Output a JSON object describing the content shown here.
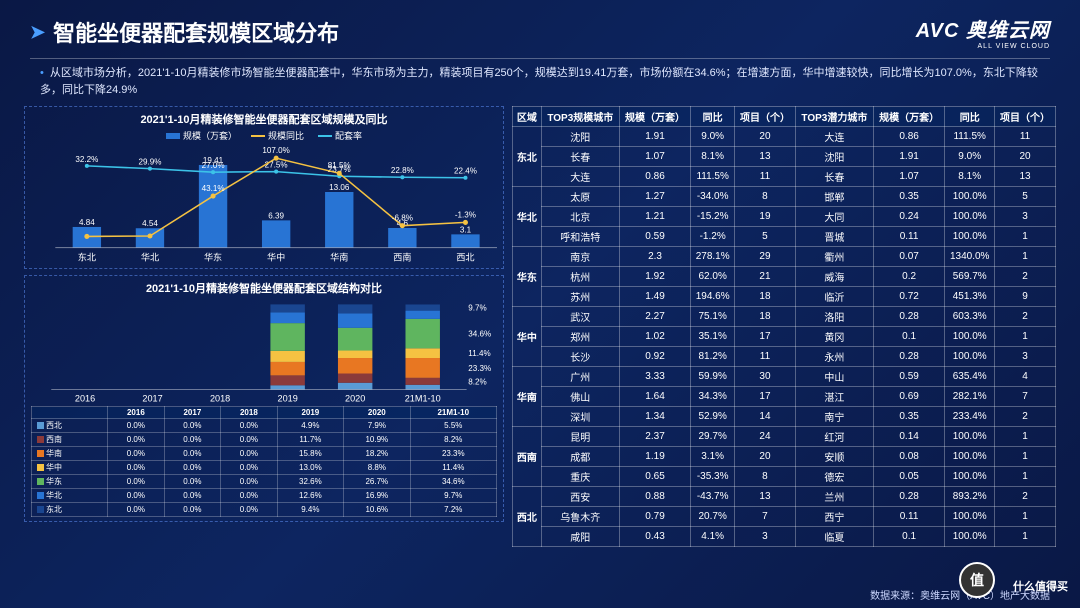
{
  "header": {
    "title": "智能坐便器配套规模区域分布",
    "logo_main": "AVC 奥维云网",
    "logo_sub": "ALL VIEW CLOUD"
  },
  "desc": "从区域市场分析，2021'1-10月精装修市场智能坐便器配套中，华东市场为主力，精装项目有250个，规模达到19.41万套，市场份额在34.6%；在增速方面，华中增速较快，同比增长为107.0%，东北下降较多，同比下降24.9%",
  "chart1": {
    "title": "2021'1-10月精装修智能坐便器配套区域规模及同比",
    "legend": [
      "规模（万套）",
      "规模同比",
      "配套率"
    ],
    "colors": {
      "bar": "#2874d4",
      "line_yoy": "#f5c242",
      "line_rate": "#3cc3e8"
    },
    "categories": [
      "东北",
      "华北",
      "华东",
      "华中",
      "华南",
      "西南",
      "西北"
    ],
    "bars": [
      4.84,
      4.54,
      19.41,
      6.39,
      13.06,
      4.6,
      3.1
    ],
    "yoy": [
      -24.9,
      -24.2,
      43.1,
      107.0,
      81.5,
      -6.8,
      -1.3
    ],
    "rate": [
      32.2,
      29.9,
      27.0,
      27.5,
      23.7,
      22.8,
      22.4
    ],
    "bar_labels": [
      "4.84-24.9%",
      "4.54-24.2%",
      "19.41",
      "6.39",
      "13.06",
      "4.60",
      "3.10"
    ],
    "yoy_labels": [
      "",
      "",
      "43.1%",
      "107.0%",
      "81.5%",
      "-6.8%",
      "-1.3%"
    ],
    "rate_labels": [
      "32.2%",
      "29.9%",
      "27.0%",
      "27.5%",
      "23.7%",
      "22.8%",
      "22.4%"
    ]
  },
  "chart2": {
    "title": "2021'1-10月精装修智能坐便器配套区域结构对比",
    "years": [
      "2016",
      "2017",
      "2018",
      "2019",
      "2020",
      "21M1-10"
    ],
    "regions": [
      "西北",
      "西南",
      "华南",
      "华中",
      "华东",
      "华北",
      "东北"
    ],
    "colors": [
      "#5a9bd5",
      "#8b3a3a",
      "#e87722",
      "#f5c242",
      "#5fb55f",
      "#2874d4",
      "#1a4690"
    ],
    "side_labels": [
      "8.2%",
      "23.3%",
      "11.4%",
      "34.6%",
      "9.7%"
    ],
    "data": [
      [
        0.0,
        0.0,
        0.0,
        4.9,
        7.9,
        5.5
      ],
      [
        0.0,
        0.0,
        0.0,
        11.7,
        10.9,
        8.2
      ],
      [
        0.0,
        0.0,
        0.0,
        15.8,
        18.2,
        23.3
      ],
      [
        0.0,
        0.0,
        0.0,
        13.0,
        8.8,
        11.4
      ],
      [
        0.0,
        0.0,
        0.0,
        32.6,
        26.7,
        34.6
      ],
      [
        0.0,
        0.0,
        0.0,
        12.6,
        16.9,
        9.7
      ],
      [
        0.0,
        0.0,
        0.0,
        9.4,
        10.6,
        7.2
      ]
    ]
  },
  "table": {
    "headers": [
      "区域",
      "TOP3规模城市",
      "规模（万套）",
      "同比",
      "项目（个）",
      "TOP3潜力城市",
      "规模（万套）",
      "同比",
      "项目（个）"
    ],
    "groups": [
      {
        "region": "东北",
        "rows": [
          [
            "沈阳",
            "1.91",
            "9.0%",
            "20",
            "大连",
            "0.86",
            "111.5%",
            "11"
          ],
          [
            "长春",
            "1.07",
            "8.1%",
            "13",
            "沈阳",
            "1.91",
            "9.0%",
            "20"
          ],
          [
            "大连",
            "0.86",
            "111.5%",
            "11",
            "长春",
            "1.07",
            "8.1%",
            "13"
          ]
        ]
      },
      {
        "region": "华北",
        "rows": [
          [
            "太原",
            "1.27",
            "-34.0%",
            "8",
            "邯郸",
            "0.35",
            "100.0%",
            "5"
          ],
          [
            "北京",
            "1.21",
            "-15.2%",
            "19",
            "大同",
            "0.24",
            "100.0%",
            "3"
          ],
          [
            "呼和浩特",
            "0.59",
            "-1.2%",
            "5",
            "晋城",
            "0.11",
            "100.0%",
            "1"
          ]
        ]
      },
      {
        "region": "华东",
        "rows": [
          [
            "南京",
            "2.3",
            "278.1%",
            "29",
            "衢州",
            "0.07",
            "1340.0%",
            "1"
          ],
          [
            "杭州",
            "1.92",
            "62.0%",
            "21",
            "威海",
            "0.2",
            "569.7%",
            "2"
          ],
          [
            "苏州",
            "1.49",
            "194.6%",
            "18",
            "临沂",
            "0.72",
            "451.3%",
            "9"
          ]
        ]
      },
      {
        "region": "华中",
        "rows": [
          [
            "武汉",
            "2.27",
            "75.1%",
            "18",
            "洛阳",
            "0.28",
            "603.3%",
            "2"
          ],
          [
            "郑州",
            "1.02",
            "35.1%",
            "17",
            "黄冈",
            "0.1",
            "100.0%",
            "1"
          ],
          [
            "长沙",
            "0.92",
            "81.2%",
            "11",
            "永州",
            "0.28",
            "100.0%",
            "3"
          ]
        ]
      },
      {
        "region": "华南",
        "rows": [
          [
            "广州",
            "3.33",
            "59.9%",
            "30",
            "中山",
            "0.59",
            "635.4%",
            "4"
          ],
          [
            "佛山",
            "1.64",
            "34.3%",
            "17",
            "湛江",
            "0.69",
            "282.1%",
            "7"
          ],
          [
            "深圳",
            "1.34",
            "52.9%",
            "14",
            "南宁",
            "0.35",
            "233.4%",
            "2"
          ]
        ]
      },
      {
        "region": "西南",
        "rows": [
          [
            "昆明",
            "2.37",
            "29.7%",
            "24",
            "红河",
            "0.14",
            "100.0%",
            "1"
          ],
          [
            "成都",
            "1.19",
            "3.1%",
            "20",
            "安顺",
            "0.08",
            "100.0%",
            "1"
          ],
          [
            "重庆",
            "0.65",
            "-35.3%",
            "8",
            "德宏",
            "0.05",
            "100.0%",
            "1"
          ]
        ]
      },
      {
        "region": "西北",
        "rows": [
          [
            "西安",
            "0.88",
            "-43.7%",
            "13",
            "兰州",
            "0.28",
            "893.2%",
            "2"
          ],
          [
            "乌鲁木齐",
            "0.79",
            "20.7%",
            "7",
            "西宁",
            "0.11",
            "100.0%",
            "1"
          ],
          [
            "咸阳",
            "0.43",
            "4.1%",
            "3",
            "临夏",
            "0.1",
            "100.0%",
            "1"
          ]
        ]
      }
    ]
  },
  "footer": "数据来源：奥维云网（AVC）地产大数据",
  "smzdm": "什么值得买"
}
